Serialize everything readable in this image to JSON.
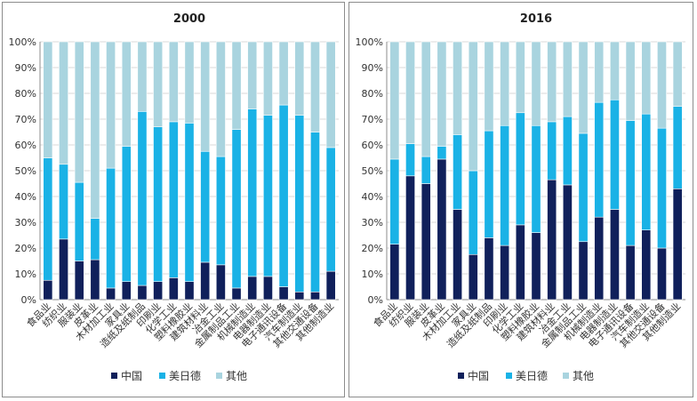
{
  "colors": {
    "china": "#10205b",
    "usjpde": "#1ab2e6",
    "other": "#a9d4df",
    "grid": "#d9d9d9",
    "axis": "#8c8c8c"
  },
  "legend": [
    "中国",
    "美日德",
    "其他"
  ],
  "chart_data": [
    {
      "type": "bar",
      "stacked": true,
      "title": "2000",
      "ylim": [
        0,
        100
      ],
      "yticks": [
        "0%",
        "10%",
        "20%",
        "30%",
        "40%",
        "50%",
        "60%",
        "70%",
        "80%",
        "90%",
        "100%"
      ],
      "categories": [
        "食品业",
        "纺织业",
        "服装业",
        "皮革业",
        "木材加工业",
        "家具业",
        "造纸及纸制品",
        "印刷业",
        "化学工业",
        "塑料橡胶业",
        "建筑材料业",
        "冶金工业",
        "金属制品工业",
        "机械制造业",
        "电器制造业",
        "电子通讯设备",
        "汽车制造业",
        "其他交通设备",
        "其他制造业"
      ],
      "series": [
        {
          "name": "中国",
          "values": [
            7.5,
            23.5,
            15,
            15.5,
            4.5,
            7,
            5.5,
            7,
            8.5,
            7,
            14.5,
            13.5,
            4.5,
            9,
            9,
            5,
            3,
            3,
            11
          ]
        },
        {
          "name": "美日德",
          "values": [
            47.5,
            29,
            30.5,
            16,
            46.5,
            52.5,
            67.5,
            60,
            60.5,
            61.5,
            43,
            42,
            61.5,
            65,
            62.5,
            70.5,
            68.5,
            62,
            48
          ]
        },
        {
          "name": "其他",
          "values": [
            45,
            47.5,
            54.5,
            68.5,
            49,
            40.5,
            27,
            33,
            31,
            31.5,
            42.5,
            44.5,
            34,
            26,
            28.5,
            24.5,
            28.5,
            35,
            41
          ]
        }
      ]
    },
    {
      "type": "bar",
      "stacked": true,
      "title": "2016",
      "ylim": [
        0,
        100
      ],
      "yticks": [
        "0%",
        "10%",
        "20%",
        "30%",
        "40%",
        "50%",
        "60%",
        "70%",
        "80%",
        "90%",
        "100%"
      ],
      "categories": [
        "食品业",
        "纺织业",
        "服装业",
        "皮革业",
        "木材加工业",
        "家具业",
        "造纸及纸制品",
        "印刷业",
        "化学工业",
        "塑料橡胶业",
        "建筑材料业",
        "冶金工业",
        "金属制品工业",
        "机械制造业",
        "电器制造业",
        "电子通讯设备",
        "汽车制造业",
        "其他交通设备",
        "其他制造业"
      ],
      "series": [
        {
          "name": "中国",
          "values": [
            21.5,
            48,
            45,
            54.5,
            35,
            17.5,
            24,
            21,
            29,
            26,
            46.5,
            44.5,
            22.5,
            32,
            35,
            21,
            27,
            20,
            43
          ]
        },
        {
          "name": "美日德",
          "values": [
            33,
            12.5,
            10.5,
            5,
            29,
            32.5,
            41.5,
            46.5,
            43.5,
            41.5,
            22.5,
            26.5,
            42,
            44.5,
            42.5,
            48.5,
            45,
            46.5,
            32
          ]
        },
        {
          "name": "其他",
          "values": [
            45.5,
            39.5,
            44.5,
            40.5,
            36,
            50,
            34.5,
            32.5,
            27.5,
            32.5,
            31,
            29,
            35.5,
            23.5,
            22.5,
            30.5,
            28,
            33.5,
            25
          ]
        }
      ]
    }
  ]
}
